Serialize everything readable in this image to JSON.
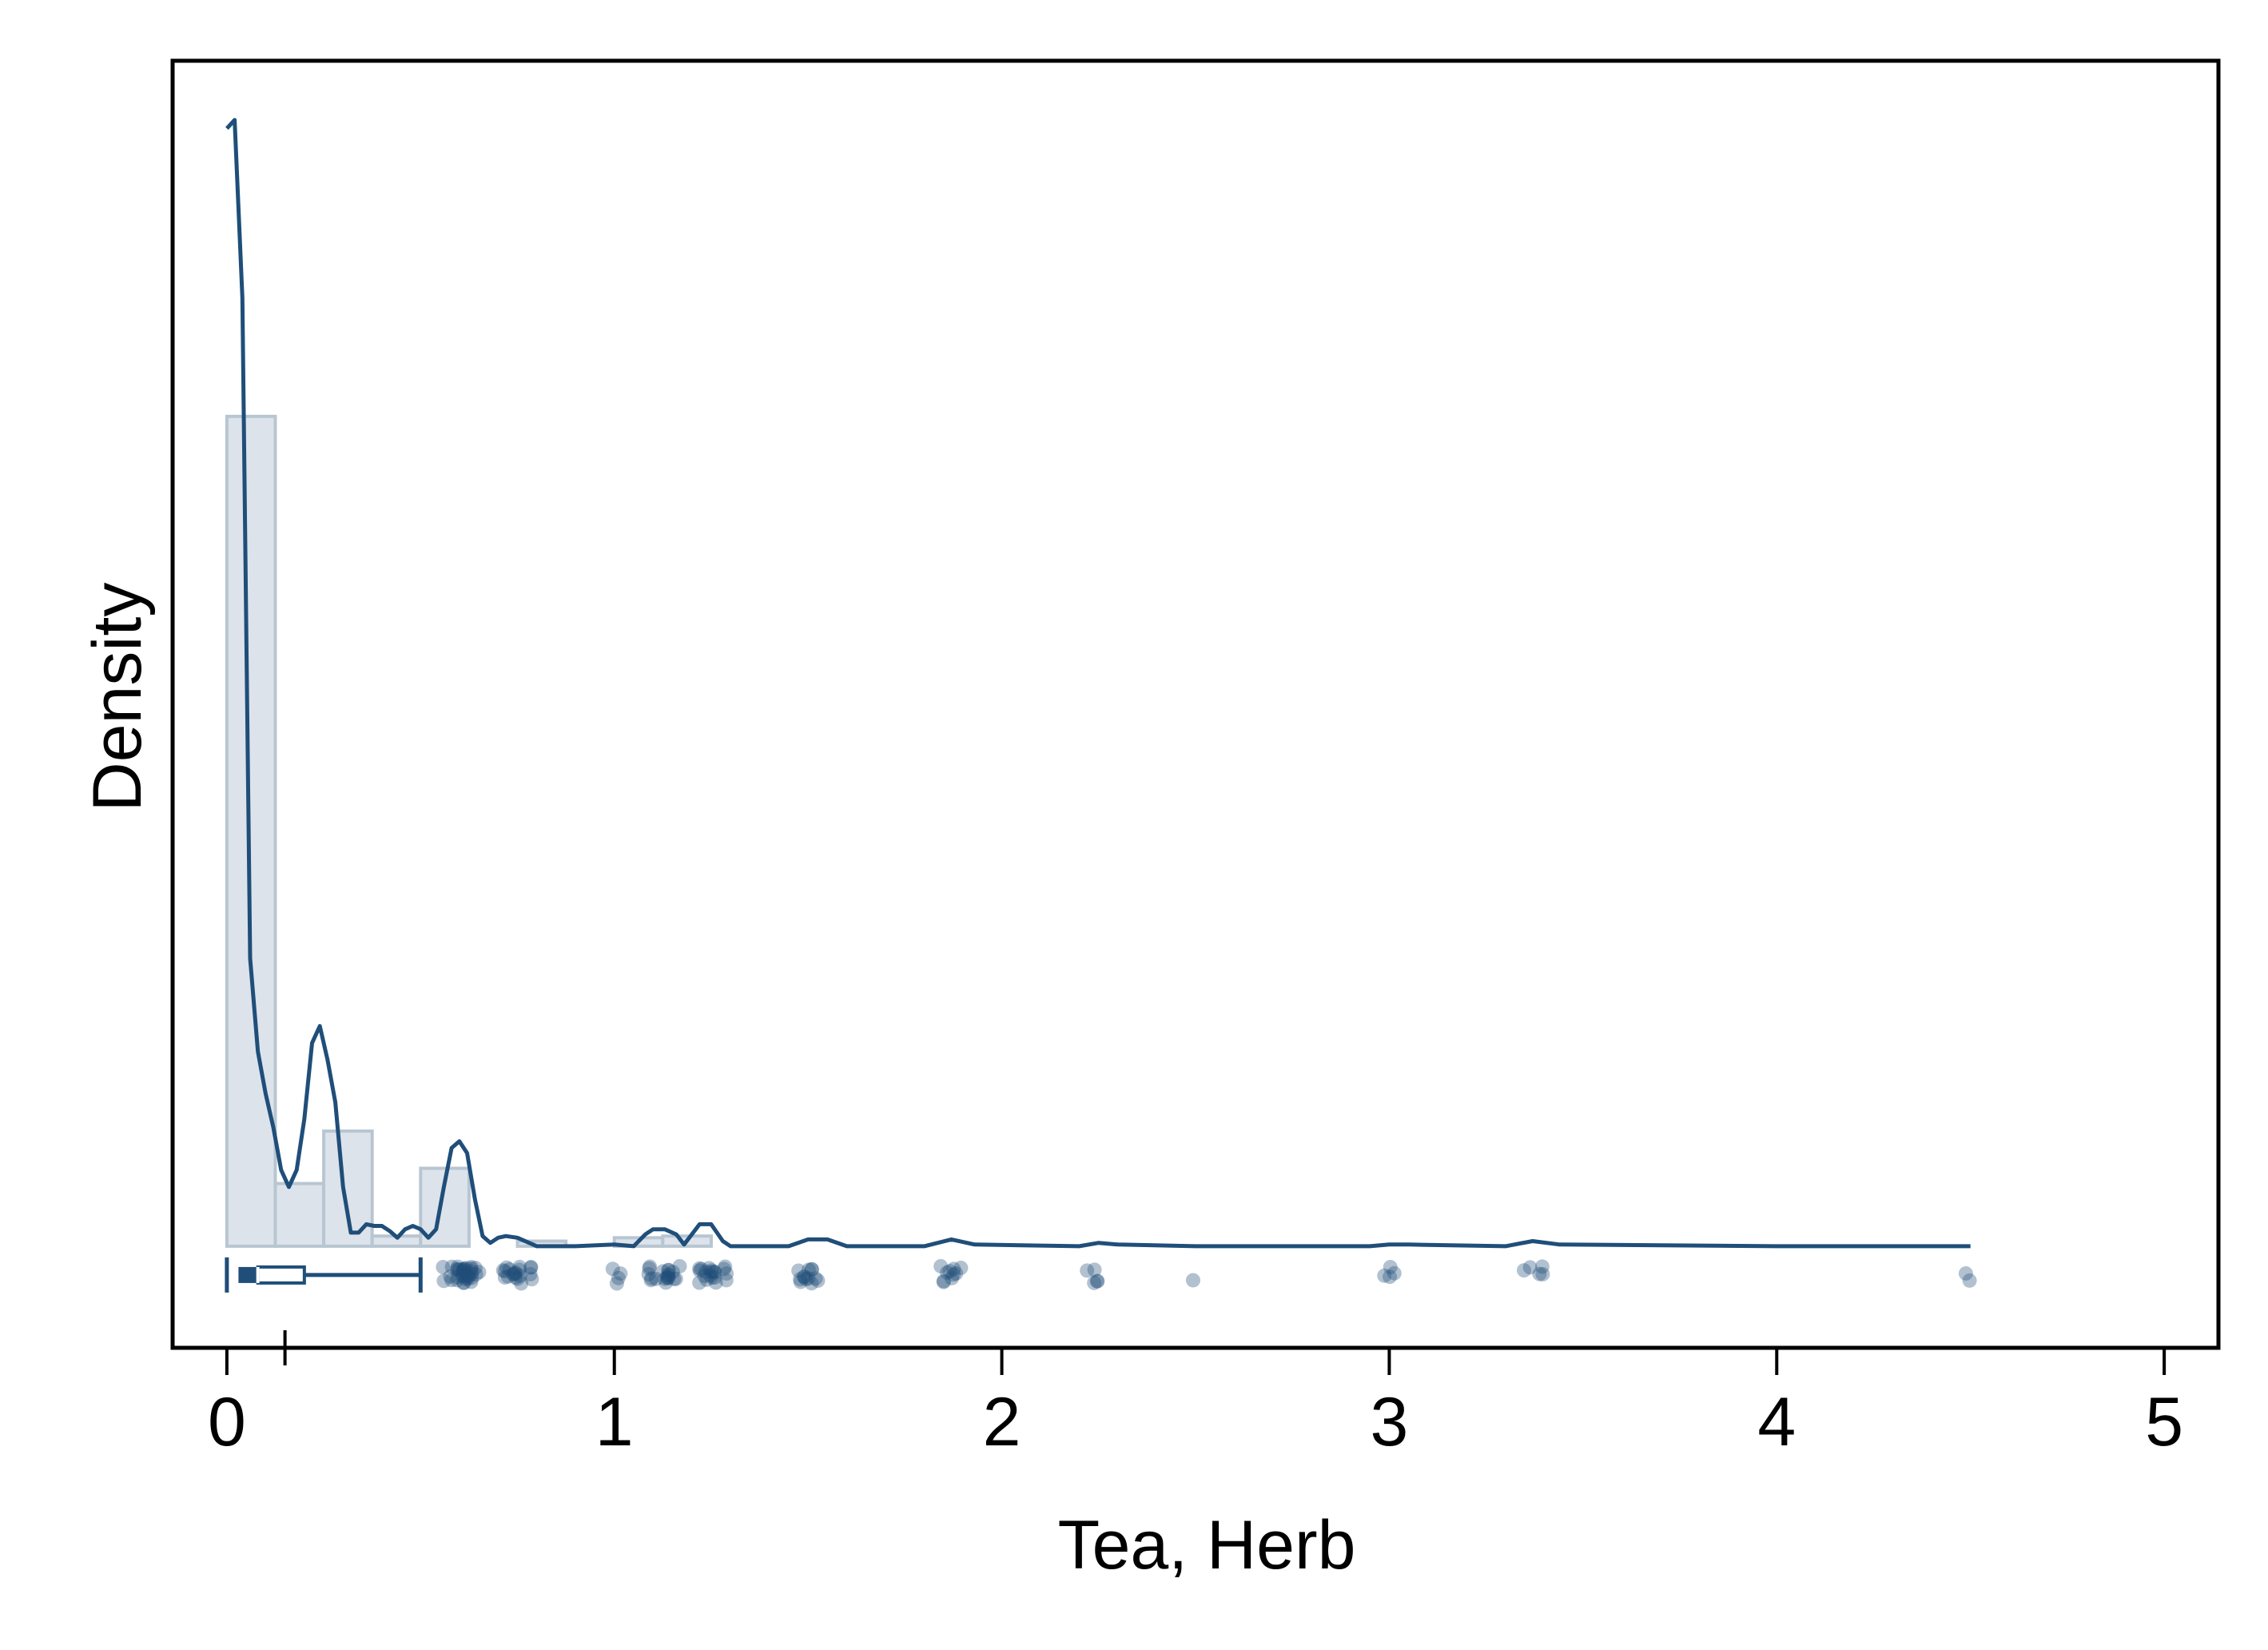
{
  "chart_data": {
    "type": "histogram",
    "xlabel": "Tea, Herb",
    "ylabel": "Density",
    "xlim": [
      -0.14,
      5.14
    ],
    "ylim": [
      -0.6,
      7.0
    ],
    "x_ticks": [
      0,
      1,
      2,
      3,
      4,
      5
    ],
    "x_minor_ticks": [
      0.15
    ],
    "y_ticks_shown": false,
    "grid": false,
    "colors": {
      "line": "#1f4e79",
      "bar_fill": "#dde3ea",
      "bar_stroke": "#b8c6d2",
      "points": "#1f4e79"
    },
    "histogram": {
      "bin_width": 0.125,
      "bins": [
        {
          "x0": 0.0,
          "x1": 0.125,
          "density": 4.9
        },
        {
          "x0": 0.125,
          "x1": 0.25,
          "density": 0.37
        },
        {
          "x0": 0.25,
          "x1": 0.375,
          "density": 0.68
        },
        {
          "x0": 0.375,
          "x1": 0.5,
          "density": 0.06
        },
        {
          "x0": 0.5,
          "x1": 0.625,
          "density": 0.46
        },
        {
          "x0": 0.625,
          "x1": 0.75,
          "density": 0.0
        },
        {
          "x0": 0.75,
          "x1": 0.875,
          "density": 0.03
        },
        {
          "x0": 0.875,
          "x1": 1.0,
          "density": 0.0
        },
        {
          "x0": 1.0,
          "x1": 1.125,
          "density": 0.05
        },
        {
          "x0": 1.125,
          "x1": 1.25,
          "density": 0.06
        }
      ]
    },
    "kde": {
      "x": [
        0.0,
        0.02,
        0.04,
        0.06,
        0.08,
        0.1,
        0.12,
        0.14,
        0.16,
        0.18,
        0.2,
        0.22,
        0.24,
        0.26,
        0.28,
        0.3,
        0.32,
        0.34,
        0.36,
        0.38,
        0.4,
        0.42,
        0.44,
        0.46,
        0.48,
        0.5,
        0.52,
        0.54,
        0.56,
        0.58,
        0.6,
        0.62,
        0.64,
        0.66,
        0.68,
        0.7,
        0.72,
        0.75,
        0.78,
        0.8,
        0.85,
        0.9,
        1.0,
        1.05,
        1.08,
        1.1,
        1.13,
        1.16,
        1.18,
        1.2,
        1.22,
        1.25,
        1.28,
        1.3,
        1.45,
        1.5,
        1.55,
        1.6,
        1.8,
        1.87,
        1.93,
        2.2,
        2.25,
        2.3,
        2.5,
        2.95,
        3.0,
        3.05,
        3.3,
        3.37,
        3.44,
        4.0,
        4.5
      ],
      "y": [
        6.6,
        6.65,
        5.6,
        1.7,
        1.15,
        0.9,
        0.7,
        0.45,
        0.35,
        0.45,
        0.75,
        1.2,
        1.3,
        1.1,
        0.85,
        0.35,
        0.08,
        0.08,
        0.13,
        0.12,
        0.12,
        0.09,
        0.05,
        0.1,
        0.12,
        0.1,
        0.05,
        0.1,
        0.35,
        0.58,
        0.62,
        0.55,
        0.28,
        0.06,
        0.02,
        0.05,
        0.06,
        0.05,
        0.02,
        0.0,
        0.0,
        0.0,
        0.01,
        0.0,
        0.07,
        0.1,
        0.1,
        0.07,
        0.01,
        0.07,
        0.13,
        0.13,
        0.03,
        0.0,
        0.0,
        0.04,
        0.04,
        0.0,
        0.0,
        0.04,
        0.01,
        0.0,
        0.02,
        0.01,
        0.0,
        0.0,
        0.01,
        0.01,
        0.0,
        0.03,
        0.01,
        0.0,
        0.0
      ]
    },
    "boxplot": {
      "whisker_low": 0.0,
      "q1": 0.03,
      "median": 0.08,
      "q3": 0.2,
      "whisker_high": 0.5
    },
    "points": [
      {
        "x": 0.57,
        "n": 5
      },
      {
        "x": 0.6,
        "n": 12
      },
      {
        "x": 0.62,
        "n": 12
      },
      {
        "x": 0.64,
        "n": 6
      },
      {
        "x": 0.72,
        "n": 6
      },
      {
        "x": 0.75,
        "n": 10
      },
      {
        "x": 0.78,
        "n": 4
      },
      {
        "x": 1.0,
        "n": 3
      },
      {
        "x": 1.02,
        "n": 1
      },
      {
        "x": 1.1,
        "n": 6
      },
      {
        "x": 1.13,
        "n": 10
      },
      {
        "x": 1.16,
        "n": 4
      },
      {
        "x": 1.23,
        "n": 6
      },
      {
        "x": 1.25,
        "n": 10
      },
      {
        "x": 1.28,
        "n": 4
      },
      {
        "x": 1.48,
        "n": 4
      },
      {
        "x": 1.5,
        "n": 6
      },
      {
        "x": 1.52,
        "n": 3
      },
      {
        "x": 1.85,
        "n": 3
      },
      {
        "x": 1.87,
        "n": 5
      },
      {
        "x": 1.89,
        "n": 2
      },
      {
        "x": 2.23,
        "n": 2
      },
      {
        "x": 2.25,
        "n": 3
      },
      {
        "x": 2.5,
        "n": 1
      },
      {
        "x": 2.99,
        "n": 2
      },
      {
        "x": 3.01,
        "n": 2
      },
      {
        "x": 3.36,
        "n": 2
      },
      {
        "x": 3.39,
        "n": 3
      },
      {
        "x": 4.48,
        "n": 1
      },
      {
        "x": 4.5,
        "n": 1
      }
    ]
  }
}
